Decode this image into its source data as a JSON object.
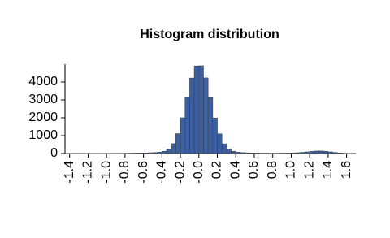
{
  "chart_data": {
    "type": "histogram",
    "title": "Histogram distribution",
    "bins": [
      -1.45,
      -1.4,
      -1.35,
      -1.3,
      -1.25,
      -1.2,
      -1.15,
      -1.1,
      -1.05,
      -1.0,
      -0.95,
      -0.9,
      -0.85,
      -0.8,
      -0.75,
      -0.7,
      -0.65,
      -0.6,
      -0.55,
      -0.5,
      -0.45,
      -0.4,
      -0.35,
      -0.3,
      -0.25,
      -0.2,
      -0.15,
      -0.1,
      -0.05,
      0,
      0.05,
      0.1,
      0.15,
      0.2,
      0.25,
      0.3,
      0.35,
      0.4,
      0.45,
      0.5,
      0.55,
      0.6,
      0.65,
      0.7,
      0.75,
      0.8,
      0.85,
      0.9,
      0.95,
      1.0,
      1.05,
      1.1,
      1.15,
      1.2,
      1.25,
      1.3,
      1.35,
      1.4,
      1.45,
      1.5,
      1.55,
      1.6,
      1.65,
      1.7
    ],
    "values": [
      2,
      2,
      3,
      3,
      4,
      4,
      5,
      6,
      7,
      8,
      10,
      12,
      14,
      17,
      20,
      24,
      28,
      33,
      40,
      52,
      75,
      125,
      250,
      550,
      1110,
      2000,
      3130,
      4220,
      4900,
      4910,
      4230,
      3120,
      1990,
      1100,
      540,
      245,
      120,
      72,
      50,
      38,
      30,
      26,
      22,
      20,
      18,
      18,
      20,
      22,
      26,
      34,
      45,
      63,
      90,
      118,
      138,
      140,
      120,
      90,
      58,
      34,
      18,
      8,
      3
    ],
    "color": "#3b5fa3",
    "xlim": [
      -1.45,
      1.7
    ],
    "xticks": [
      -1.4,
      -1.2,
      {
        "value": -1,
        "label": "-1.0"
      },
      -0.8,
      -0.6,
      -0.4,
      -0.2,
      {
        "value": 0,
        "label": "-0.0"
      },
      0.2,
      0.4,
      0.6,
      0.8,
      {
        "value": 1,
        "label": "1.0"
      },
      1.2,
      1.4,
      1.6
    ],
    "ylim": [
      0,
      5000
    ],
    "yticks": [
      0,
      1000,
      2000,
      3000,
      4000
    ]
  }
}
